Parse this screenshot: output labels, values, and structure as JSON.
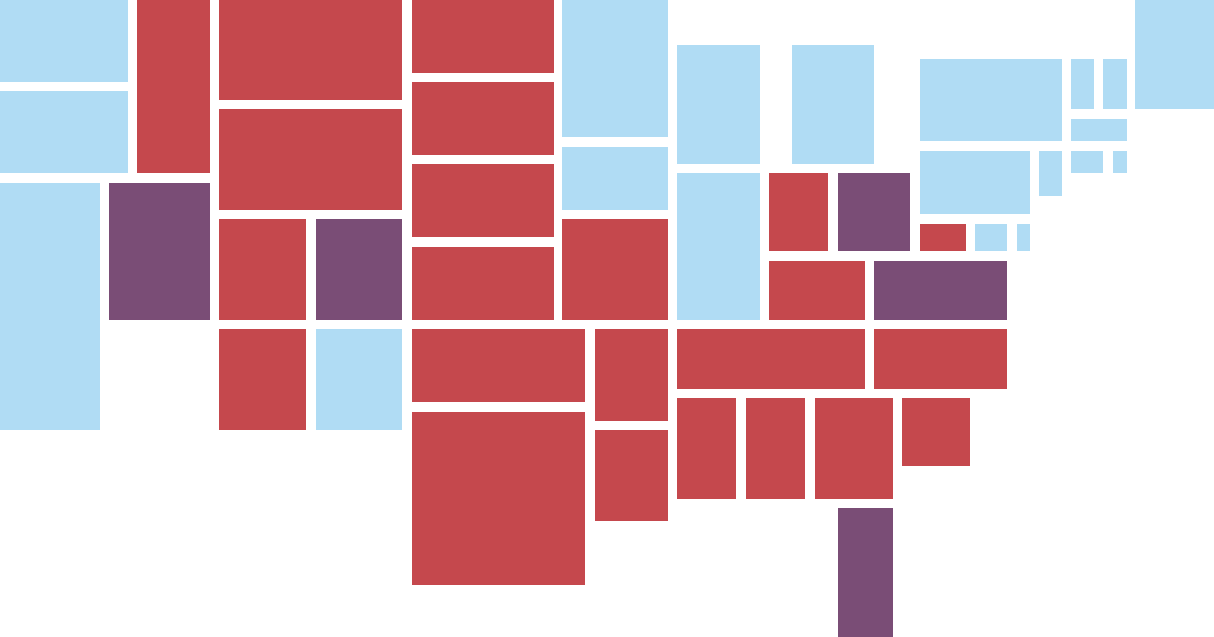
{
  "map": {
    "type": "state-tile-cartogram",
    "party_colors": {
      "blue": "#b0dcf4",
      "red": "#c5484d",
      "purple": "#7a4d76"
    },
    "tiles_by_column": [
      [
        "blue",
        "blue",
        "blue"
      ],
      [
        "red",
        "purple"
      ],
      [
        "red",
        "red",
        "red",
        "purple",
        "red",
        "blue"
      ],
      [
        "red",
        "red",
        "red",
        "red",
        "red",
        "red"
      ],
      [
        "blue",
        "blue",
        "red",
        "red",
        "red"
      ],
      [
        "blue",
        "blue",
        "red"
      ],
      [
        "blue",
        "red",
        "red",
        "red"
      ],
      [
        "purple",
        "purple"
      ],
      [
        "red"
      ],
      [
        "blue",
        "blue",
        "red",
        "blue",
        "blue",
        "blue",
        "blue",
        "blue",
        "blue",
        "blue",
        "blue"
      ],
      [
        "blue"
      ]
    ]
  }
}
